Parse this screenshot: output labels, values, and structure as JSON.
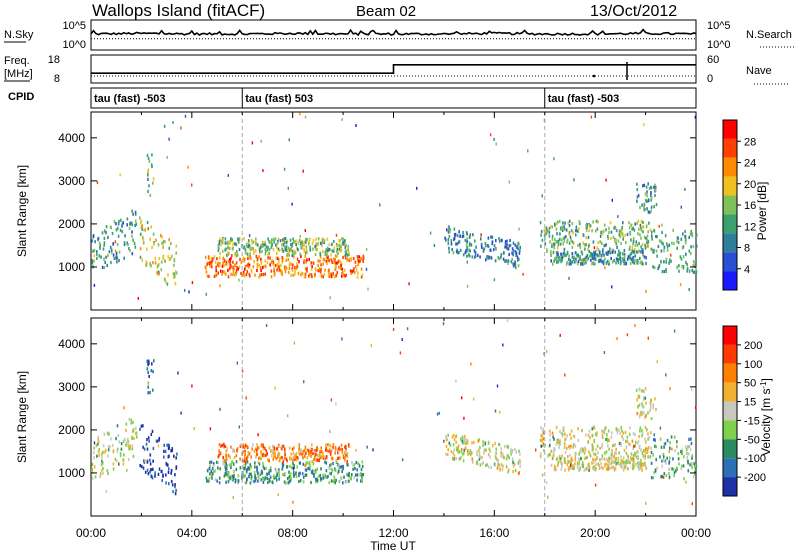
{
  "header": {
    "station": "Wallops Island (fitACF)",
    "beam": "Beam 02",
    "date": "13/Oct/2012"
  },
  "noise_panel": {
    "left_label": "N.Sky",
    "left_ticks": [
      "10^5",
      "10^0"
    ],
    "right_label": "N.Search",
    "right_ticks": [
      "10^5",
      "10^0"
    ]
  },
  "freq_panel": {
    "left_label_line1": "Freq.",
    "left_label_line2": "[MHz]",
    "left_ticks": [
      "18",
      "8"
    ],
    "right_label": "Nave",
    "right_ticks": [
      "60",
      "0"
    ]
  },
  "cpid_panel": {
    "label": "CPID",
    "segments": [
      {
        "start_hour": 0,
        "text": "tau (fast) -503"
      },
      {
        "start_hour": 6,
        "text": "tau (fast) 503"
      },
      {
        "start_hour": 18,
        "text": "tau (fast) -503"
      }
    ]
  },
  "time_axis": {
    "label": "Time UT",
    "tick_labels": [
      "00:00",
      "04:00",
      "08:00",
      "12:00",
      "16:00",
      "20:00",
      "00:00"
    ]
  },
  "colors": {
    "power": [
      "#1a1aff",
      "#2a4fd0",
      "#2f7f9a",
      "#3aa070",
      "#7ec05a",
      "#f0c020",
      "#ff8c00",
      "#ff4000",
      "#ff0000"
    ],
    "velocity": [
      "#1f2fa8",
      "#2d6fb5",
      "#2a8a60",
      "#7fd04a",
      "#c8c8c0",
      "#f0b030",
      "#ff7f00",
      "#ff3a00",
      "#ff0000"
    ]
  },
  "chart_data": [
    {
      "type": "line",
      "panel": "noise",
      "x": [
        0,
        2,
        4,
        6,
        8,
        10,
        12,
        14,
        16,
        18,
        20,
        22,
        24
      ],
      "series": [
        {
          "values": [
            3.0,
            3.1,
            3.0,
            3.0,
            3.1,
            3.0,
            3.0,
            3.0,
            3.1,
            3.0,
            3.0,
            3.1,
            3.0
          ]
        },
        {
          "values": [
            2.2,
            2.2,
            2.2,
            2.2,
            2.2,
            2.2,
            2.2,
            2.2,
            2.2,
            2.2,
            2.2,
            2.2,
            2.2
          ]
        }
      ]
    },
    {
      "type": "line",
      "panel": "frequency",
      "x": [
        0,
        12,
        12,
        24
      ],
      "series": [
        {
          "values": [
            11.5,
            11.5,
            14.5,
            14.5
          ]
        }
      ],
      "ylim": [
        8,
        18
      ]
    },
    {
      "type": "heatmap",
      "panel": "power",
      "title": "",
      "xlabel": "",
      "ylabel": "Slant Range [km]",
      "xlim": [
        0,
        24
      ],
      "ylim": [
        0,
        4600
      ],
      "yticks": [
        1000,
        2000,
        3000,
        4000
      ],
      "colorbar": {
        "label": "Power [dB]",
        "range": [
          0,
          32
        ],
        "tick_labels": [
          "4",
          "8",
          "12",
          "16",
          "20",
          "24",
          "28"
        ]
      },
      "clusters": [
        {
          "t0": 0.0,
          "t1": 1.8,
          "r0": 1100,
          "r1": 2100,
          "slope": 600,
          "level": 0.35
        },
        {
          "t0": 1.9,
          "t1": 3.4,
          "r0": 800,
          "r1": 1900,
          "slope": -700,
          "level": 0.55
        },
        {
          "t0": 2.2,
          "t1": 2.5,
          "r0": 2700,
          "r1": 3700,
          "slope": 0,
          "level": 0.45
        },
        {
          "t0": 4.5,
          "t1": 10.8,
          "r0": 800,
          "r1": 1300,
          "slope": 0,
          "level": 0.75
        },
        {
          "t0": 5.0,
          "t1": 10.2,
          "r0": 1300,
          "r1": 1700,
          "slope": 0,
          "level": 0.45
        },
        {
          "t0": 14.0,
          "t1": 17.0,
          "r0": 1200,
          "r1": 1800,
          "slope": -400,
          "level": 0.3
        },
        {
          "t0": 17.8,
          "t1": 22.2,
          "r0": 1400,
          "r1": 2100,
          "slope": 0,
          "level": 0.45
        },
        {
          "t0": 18.2,
          "t1": 22.0,
          "r0": 1100,
          "r1": 1400,
          "slope": 0,
          "level": 0.35
        },
        {
          "t0": 21.6,
          "t1": 22.4,
          "r0": 2300,
          "r1": 3000,
          "slope": 0,
          "level": 0.35
        },
        {
          "t0": 22.2,
          "t1": 24.0,
          "r0": 900,
          "r1": 1900,
          "slope": 0,
          "level": 0.4
        }
      ]
    },
    {
      "type": "heatmap",
      "panel": "velocity",
      "title": "",
      "xlabel": "Time UT",
      "ylabel": "Slant Range [km]",
      "xlim": [
        0,
        24
      ],
      "ylim": [
        0,
        4600
      ],
      "yticks": [
        1000,
        2000,
        3000,
        4000
      ],
      "colorbar": {
        "label": "Velocity [m s-1]",
        "range": [
          -250,
          250
        ],
        "tick_labels": [
          "200",
          "100",
          "50",
          "15",
          "-15",
          "-50",
          "-100",
          "-200"
        ]
      },
      "clusters": [
        {
          "t0": 0.0,
          "t1": 1.8,
          "r0": 1100,
          "r1": 2100,
          "slope": 600,
          "level": 0.45
        },
        {
          "t0": 1.9,
          "t1": 3.4,
          "r0": 800,
          "r1": 1900,
          "slope": -700,
          "level": 0.05
        },
        {
          "t0": 2.2,
          "t1": 2.5,
          "r0": 2700,
          "r1": 3700,
          "slope": 0,
          "level": 0.2
        },
        {
          "t0": 4.5,
          "t1": 10.8,
          "r0": 800,
          "r1": 1300,
          "slope": 0,
          "level": 0.3
        },
        {
          "t0": 5.0,
          "t1": 10.2,
          "r0": 1300,
          "r1": 1700,
          "slope": 0,
          "level": 0.7
        },
        {
          "t0": 14.0,
          "t1": 17.0,
          "r0": 1200,
          "r1": 1800,
          "slope": -400,
          "level": 0.5
        },
        {
          "t0": 17.8,
          "t1": 22.2,
          "r0": 1400,
          "r1": 2100,
          "slope": 0,
          "level": 0.5
        },
        {
          "t0": 18.2,
          "t1": 22.0,
          "r0": 1100,
          "r1": 1400,
          "slope": 0,
          "level": 0.5
        },
        {
          "t0": 21.6,
          "t1": 22.4,
          "r0": 2300,
          "r1": 3000,
          "slope": 0,
          "level": 0.5
        },
        {
          "t0": 22.2,
          "t1": 24.0,
          "r0": 900,
          "r1": 1900,
          "slope": 0,
          "level": 0.35
        }
      ]
    }
  ]
}
